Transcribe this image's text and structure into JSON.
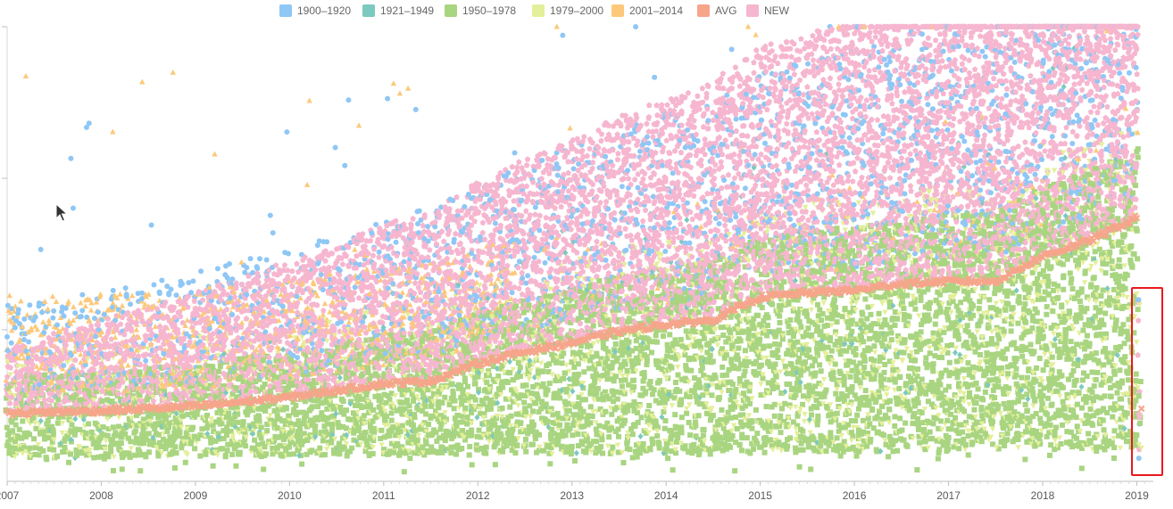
{
  "chart_data": {
    "type": "scatter",
    "title": "",
    "xlabel": "",
    "ylabel": "",
    "x_ticks": [
      "2007",
      "2008",
      "2009",
      "2010",
      "2011",
      "2012",
      "2013",
      "2014",
      "2015",
      "2016",
      "2017",
      "2018",
      "2019"
    ],
    "xlim": [
      2007.0,
      2019.1
    ],
    "ylim": [
      0,
      100
    ],
    "grid": false,
    "legend_position": "top-center",
    "series": [
      {
        "name": "1900–1920",
        "color": "#8fc7f5",
        "marker": "circle"
      },
      {
        "name": "1921–1949",
        "color": "#7cc9bf",
        "marker": "diamond"
      },
      {
        "name": "1950–1978",
        "color": "#a9d581",
        "marker": "square"
      },
      {
        "name": "1979–2000",
        "color": "#e4ef99",
        "marker": "triangle-down"
      },
      {
        "name": "2001–2014",
        "color": "#fcc97b",
        "marker": "triangle"
      },
      {
        "name": "AVG",
        "color": "#f6a58b",
        "marker": "x"
      },
      {
        "name": "NEW",
        "color": "#f6b6cf",
        "marker": "pentagon"
      }
    ],
    "avg_trend": {
      "x": [
        2007.0,
        2008.0,
        2009.0,
        2010.0,
        2010.5,
        2011.0,
        2011.5,
        2012.0,
        2012.5,
        2013.0,
        2013.5,
        2014.0,
        2014.5,
        2015.0,
        2015.5,
        2016.0,
        2016.5,
        2017.0,
        2017.5,
        2018.0,
        2018.5,
        2019.0
      ],
      "y": [
        15,
        15.5,
        16.5,
        18.5,
        20,
        21.5,
        22,
        26,
        28.5,
        30.5,
        33,
        34.5,
        35.5,
        40.5,
        41.5,
        42,
        43.5,
        44,
        44,
        49.5,
        53,
        58
      ]
    }
  }
}
